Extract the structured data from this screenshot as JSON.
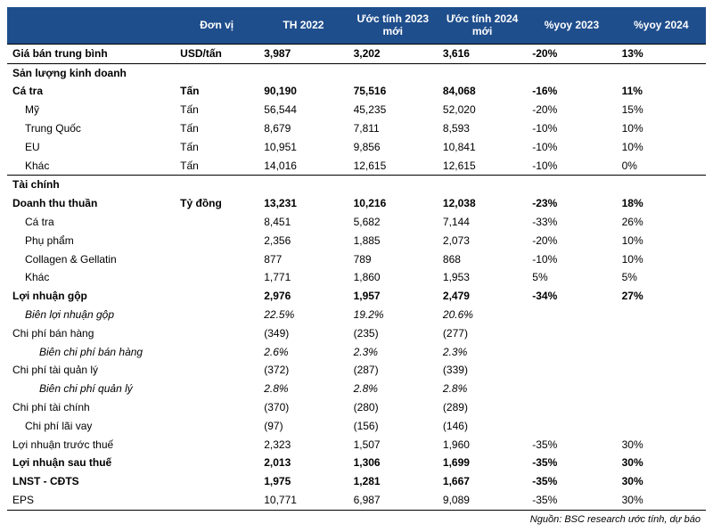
{
  "colors": {
    "header_bg": "#1f4e8c",
    "header_fg": "#ffffff",
    "row_border": "#000000",
    "text": "#000000",
    "background": "#ffffff"
  },
  "typography": {
    "font_family": "Arial, sans-serif",
    "base_size_pt": 9,
    "header_weight": "bold"
  },
  "headers": {
    "c0": "",
    "c1": "Đơn vị",
    "c2": "TH 2022",
    "c3": "Ước tính 2023 mới",
    "c4": "Ước tính 2024 mới",
    "c5": "%yoy 2023",
    "c6": "%yoy 2024"
  },
  "rows": [
    {
      "style": "bold top-border",
      "c0": "Giá bán trung bình",
      "c1": "USD/tấn",
      "c2": "3,987",
      "c3": "3,202",
      "c4": "3,616",
      "c5": "-20%",
      "c6": "13%"
    },
    {
      "style": "section",
      "c0": "Sản lượng kinh doanh",
      "c1": "",
      "c2": "",
      "c3": "",
      "c4": "",
      "c5": "",
      "c6": ""
    },
    {
      "style": "bold",
      "c0": "Cá tra",
      "c1": "Tấn",
      "c2": "90,190",
      "c3": "75,516",
      "c4": "84,068",
      "c5": "-16%",
      "c6": "11%"
    },
    {
      "style": "indent1",
      "c0": "Mỹ",
      "c1": "Tấn",
      "c2": "56,544",
      "c3": "45,235",
      "c4": "52,020",
      "c5": "-20%",
      "c6": "15%"
    },
    {
      "style": "indent1",
      "c0": "Trung Quốc",
      "c1": "Tấn",
      "c2": "8,679",
      "c3": "7,811",
      "c4": "8,593",
      "c5": "-10%",
      "c6": "10%"
    },
    {
      "style": "indent1",
      "c0": "EU",
      "c1": "Tấn",
      "c2": "10,951",
      "c3": "9,856",
      "c4": "10,841",
      "c5": "-10%",
      "c6": "10%"
    },
    {
      "style": "indent1",
      "c0": "Khác",
      "c1": "Tấn",
      "c2": "14,016",
      "c3": "12,615",
      "c4": "12,615",
      "c5": "-10%",
      "c6": "0%"
    },
    {
      "style": "section",
      "c0": "Tài chính",
      "c1": "",
      "c2": "",
      "c3": "",
      "c4": "",
      "c5": "",
      "c6": ""
    },
    {
      "style": "bold",
      "c0": "Doanh thu thuần",
      "c1": "Tỷ đồng",
      "c2": "13,231",
      "c3": "10,216",
      "c4": "12,038",
      "c5": "-23%",
      "c6": "18%"
    },
    {
      "style": "indent1",
      "c0": "Cá tra",
      "c1": "",
      "c2": "8,451",
      "c3": "5,682",
      "c4": "7,144",
      "c5": "-33%",
      "c6": "26%"
    },
    {
      "style": "indent1",
      "c0": "Phụ phẩm",
      "c1": "",
      "c2": "2,356",
      "c3": "1,885",
      "c4": "2,073",
      "c5": "-20%",
      "c6": "10%"
    },
    {
      "style": "indent1",
      "c0": "Collagen & Gellatin",
      "c1": "",
      "c2": "877",
      "c3": "789",
      "c4": "868",
      "c5": "-10%",
      "c6": "10%"
    },
    {
      "style": "indent1",
      "c0": "Khác",
      "c1": "",
      "c2": "1,771",
      "c3": "1,860",
      "c4": "1,953",
      "c5": "5%",
      "c6": "5%"
    },
    {
      "style": "bold",
      "c0": "Lợi nhuận gộp",
      "c1": "",
      "c2": "2,976",
      "c3": "1,957",
      "c4": "2,479",
      "c5": "-34%",
      "c6": "27%"
    },
    {
      "style": "italic indent1",
      "c0": "Biên lợi nhuận gộp",
      "c1": "",
      "c2": "22.5%",
      "c3": "19.2%",
      "c4": "20.6%",
      "c5": "",
      "c6": ""
    },
    {
      "style": "",
      "c0": "Chi phí bán hàng",
      "c1": "",
      "c2": "(349)",
      "c3": "(235)",
      "c4": "(277)",
      "c5": "",
      "c6": ""
    },
    {
      "style": "italic indent2",
      "c0": "Biên chi phí bán hàng",
      "c1": "",
      "c2": "2.6%",
      "c3": "2.3%",
      "c4": "2.3%",
      "c5": "",
      "c6": ""
    },
    {
      "style": "",
      "c0": "Chi phí tài quản lý",
      "c1": "",
      "c2": "(372)",
      "c3": "(287)",
      "c4": "(339)",
      "c5": "",
      "c6": ""
    },
    {
      "style": "italic indent2",
      "c0": "Biên chi phí quản lý",
      "c1": "",
      "c2": "2.8%",
      "c3": "2.8%",
      "c4": "2.8%",
      "c5": "",
      "c6": ""
    },
    {
      "style": "",
      "c0": "Chi phí tài chính",
      "c1": "",
      "c2": "(370)",
      "c3": "(280)",
      "c4": "(289)",
      "c5": "",
      "c6": ""
    },
    {
      "style": "indent1",
      "c0": "Chi phí lãi vay",
      "c1": "",
      "c2": "(97)",
      "c3": "(156)",
      "c4": "(146)",
      "c5": "",
      "c6": ""
    },
    {
      "style": "",
      "c0": "Lợi nhuận trước thuế",
      "c1": "",
      "c2": "2,323",
      "c3": "1,507",
      "c4": "1,960",
      "c5": "-35%",
      "c6": "30%"
    },
    {
      "style": "bold",
      "c0": "Lợi nhuận sau thuế",
      "c1": "",
      "c2": "2,013",
      "c3": "1,306",
      "c4": "1,699",
      "c5": "-35%",
      "c6": "30%"
    },
    {
      "style": "bold",
      "c0": "LNST - CĐTS",
      "c1": "",
      "c2": "1,975",
      "c3": "1,281",
      "c4": "1,667",
      "c5": "-35%",
      "c6": "30%"
    },
    {
      "style": "bottom-border",
      "c0": "EPS",
      "c1": "",
      "c2": "10,771",
      "c3": "6,987",
      "c4": "9,089",
      "c5": "-35%",
      "c6": "30%"
    }
  ],
  "source": "Nguồn: BSC research ước tính, dự báo"
}
